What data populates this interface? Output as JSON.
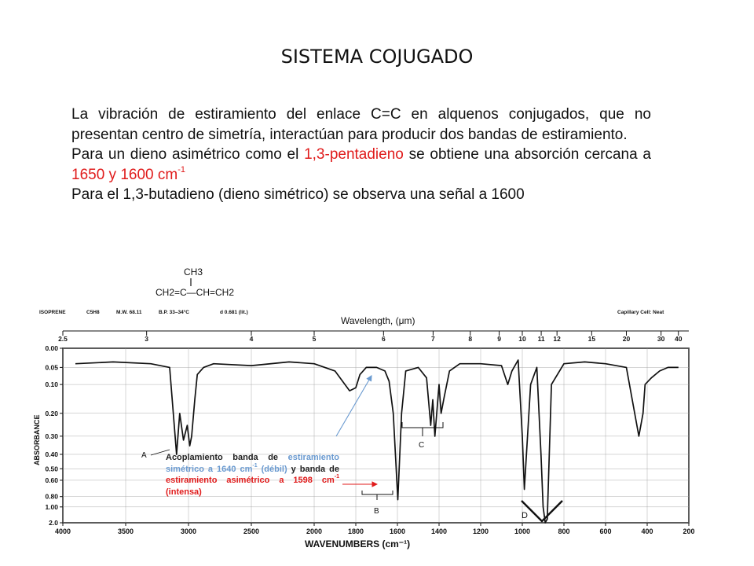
{
  "slide": {
    "title": "SISTEMA COJUGADO",
    "para1": "La vibración de estiramiento del enlace C=C en alquenos conjugados, que no presentan centro de simetría, interactúan para producir dos bandas de estiramiento.",
    "para2_a": "Para un dieno asimétrico como el ",
    "para2_highlight1": "1,3-pentadieno",
    "para2_b": " se obtiene una absorción cercana a ",
    "para2_highlight2": "1650 y 1600 cm",
    "para2_sup": "-1",
    "para3": "Para el 1,3-butadieno (dieno simétrico) se observa una señal a 1600"
  },
  "spectrum": {
    "structure_ch3": "CH3",
    "structure_chain": "CH2=C—CH=CH2",
    "header_name": "ISOPRENE",
    "header_formula": "C5H8",
    "header_mw": "M.W.  68.11",
    "header_bp": "B.P.  33–34°C",
    "header_density": "d 0.681 (lit.)",
    "header_cell": "Capillary Cell:  Neat",
    "wavelength_label": "Wavelength, (μm)",
    "wavenumber_label": "WAVENUMBERS (cm⁻¹)",
    "absorbance_label": "ABSORBANCE",
    "label_a": "A",
    "label_b": "B",
    "label_c": "C",
    "label_d": "D"
  },
  "caption": {
    "part1": "Acoplamiento banda de ",
    "part2_blue": "estiramiento simétrico a 1640 cm",
    "sup1": "-1",
    "part3_blue": " (débil)",
    "part4": " y banda de ",
    "part5_red": "estiramiento asimétrico a 1598 cm",
    "sup2": "-1",
    "part6_red": " (intensa)"
  },
  "chart_data": {
    "type": "line",
    "xlabel": "WAVENUMBERS (cm⁻¹)",
    "ylabel": "ABSORBANCE",
    "x_axis_reversed": true,
    "xlim": [
      4000,
      200
    ],
    "y_scale": "log",
    "ylim": [
      0.0,
      2.0
    ],
    "x_ticks": [
      4000,
      3500,
      3000,
      2500,
      2000,
      1800,
      1600,
      1400,
      1200,
      1000,
      800,
      600,
      400,
      200
    ],
    "y_ticks": [
      "0.00",
      "0.05",
      "0.10",
      "0.20",
      "0.30",
      "0.40",
      "0.50",
      "0.60",
      "0.80",
      "1.00",
      "2.0"
    ],
    "wavelength_ticks": [
      "2.5",
      "3",
      "4",
      "5",
      "6",
      "7",
      "8",
      "9",
      "10",
      "11",
      "12",
      "15",
      "20",
      "30",
      "40"
    ],
    "series": [
      {
        "x": [
          3900,
          3600,
          3300,
          3150,
          3095,
          3070,
          3040,
          3010,
          2990,
          2975,
          2950,
          2930,
          2880,
          2800,
          2500,
          2200,
          2000,
          1900,
          1830,
          1800,
          1780,
          1750,
          1700,
          1660,
          1640,
          1620,
          1598,
          1580,
          1560,
          1500,
          1460,
          1440,
          1430,
          1420,
          1400,
          1390,
          1375,
          1350,
          1300,
          1200,
          1100,
          1070,
          1050,
          1020,
          1000,
          990,
          960,
          930,
          910,
          900,
          890,
          880,
          860,
          800,
          700,
          600,
          500,
          440,
          420,
          410,
          380,
          340,
          300,
          250
        ],
        "y": [
          0.04,
          0.035,
          0.04,
          0.05,
          0.4,
          0.2,
          0.32,
          0.25,
          0.35,
          0.3,
          0.15,
          0.07,
          0.05,
          0.04,
          0.045,
          0.035,
          0.04,
          0.06,
          0.12,
          0.11,
          0.07,
          0.05,
          0.05,
          0.06,
          0.09,
          0.2,
          0.85,
          0.2,
          0.06,
          0.05,
          0.08,
          0.25,
          0.15,
          0.3,
          0.1,
          0.2,
          0.14,
          0.06,
          0.04,
          0.04,
          0.045,
          0.1,
          0.06,
          0.03,
          0.3,
          0.7,
          0.1,
          0.05,
          0.4,
          1.0,
          2.0,
          1.5,
          0.1,
          0.04,
          0.035,
          0.04,
          0.05,
          0.3,
          0.2,
          0.1,
          0.08,
          0.06,
          0.05,
          0.05
        ]
      }
    ]
  }
}
